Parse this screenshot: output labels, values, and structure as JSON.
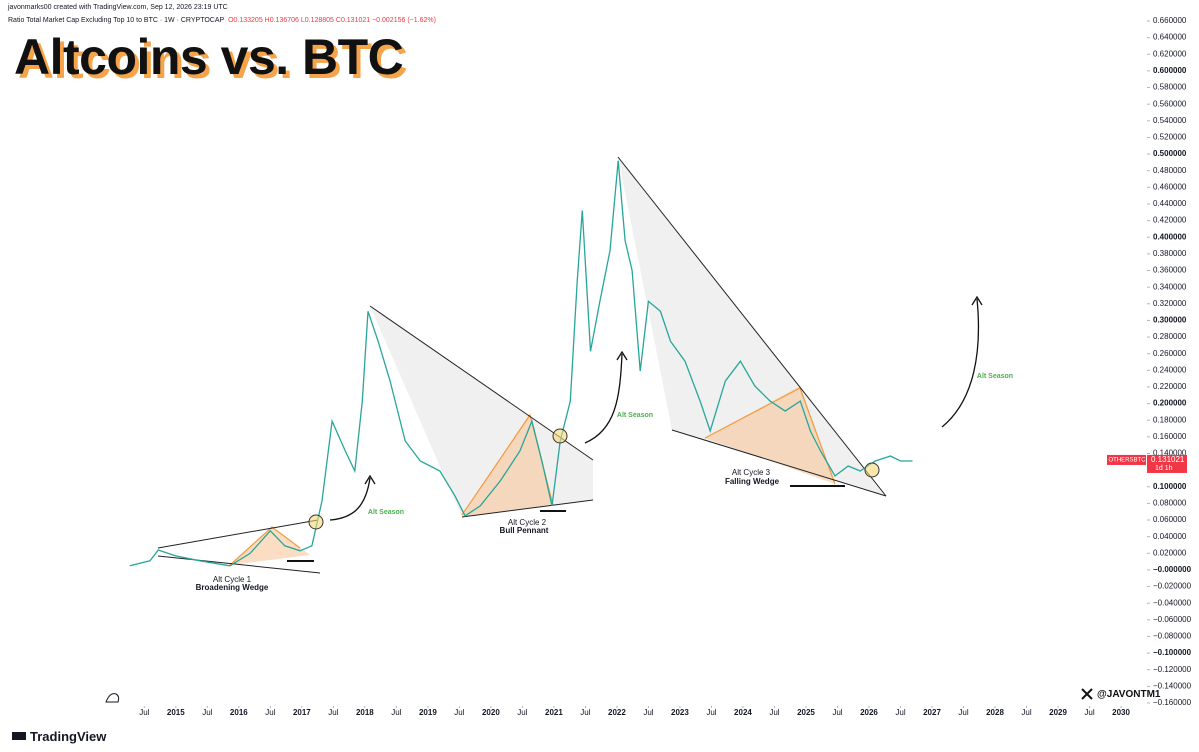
{
  "chart_data": {
    "type": "line",
    "title": "Altcoins vs. BTC",
    "attribution": "javonmarks00 created with TradingView.com, Sep 12, 2026 23:19 UTC",
    "symbol_text": "Ratio Total Market Cap Excluding Top 10 to BTC · 1W · CRYPTOCAP",
    "ohlc_text": "O0.133205  H0.136706  L0.128805  C0.131021  −0.002156 (−1.62%)",
    "brand": "TradingView",
    "handle": "@JAVONTM1",
    "last_price": 0.131021,
    "last_price_timer": "1d 1h",
    "x": [
      2014.27,
      2014.59,
      2014.72,
      2014.99,
      2015.38,
      2015.86,
      2016.18,
      2016.5,
      2016.73,
      2016.97,
      2017.16,
      2017.32,
      2017.48,
      2017.69,
      2017.84,
      2017.96,
      2018.05,
      2018.21,
      2018.4,
      2018.64,
      2018.88,
      2019.19,
      2019.43,
      2019.59,
      2019.83,
      2020.15,
      2020.46,
      2020.65,
      2020.81,
      2020.97,
      2021.1,
      2021.26,
      2021.37,
      2021.45,
      2021.58,
      2021.73,
      2021.89,
      2022.02,
      2022.13,
      2022.24,
      2022.37,
      2022.5,
      2022.69,
      2022.85,
      2023.08,
      2023.32,
      2023.48,
      2023.72,
      2023.96,
      2024.19,
      2024.43,
      2024.67,
      2024.91,
      2025.07,
      2025.23,
      2025.46,
      2025.67,
      2025.86,
      2026.1,
      2026.34,
      2026.5,
      2026.69
    ],
    "series": [
      {
        "name": "OTHERSBTC",
        "color": "#26a69a",
        "values": [
          0.005,
          0.011,
          0.024,
          0.017,
          0.011,
          0.005,
          0.02,
          0.047,
          0.029,
          0.023,
          0.029,
          0.083,
          0.179,
          0.143,
          0.119,
          0.203,
          0.311,
          0.275,
          0.227,
          0.155,
          0.131,
          0.119,
          0.089,
          0.065,
          0.077,
          0.107,
          0.143,
          0.179,
          0.131,
          0.077,
          0.155,
          0.203,
          0.347,
          0.432,
          0.263,
          0.323,
          0.384,
          0.492,
          0.396,
          0.36,
          0.239,
          0.323,
          0.311,
          0.275,
          0.251,
          0.203,
          0.167,
          0.227,
          0.251,
          0.221,
          0.203,
          0.191,
          0.203,
          0.167,
          0.143,
          0.113,
          0.125,
          0.119,
          0.131,
          0.137,
          0.131,
          0.131021
        ]
      }
    ],
    "price_label_color": "#f23645",
    "xlim": [
      2012.21,
      2030.38
    ],
    "ylim": [
      -0.16,
      0.66
    ],
    "xticks": [
      {
        "value": 2014.5,
        "label": "Jul"
      },
      2015,
      {
        "value": 2015.5,
        "label": "Jul"
      },
      2016,
      {
        "value": 2016.5,
        "label": "Jul"
      },
      2017,
      {
        "value": 2017.5,
        "label": "Jul"
      },
      2018,
      {
        "value": 2018.5,
        "label": "Jul"
      },
      2019,
      {
        "value": 2019.5,
        "label": "Jul"
      },
      2020,
      {
        "value": 2020.5,
        "label": "Jul"
      },
      2021,
      {
        "value": 2021.5,
        "label": "Jul"
      },
      2022,
      {
        "value": 2022.5,
        "label": "Jul"
      },
      2023,
      {
        "value": 2023.5,
        "label": "Jul"
      },
      2024,
      {
        "value": 2024.5,
        "label": "Jul"
      },
      2025,
      {
        "value": 2025.5,
        "label": "Jul"
      },
      2026,
      {
        "value": 2026.5,
        "label": "Jul"
      },
      2027,
      {
        "value": 2027.5,
        "label": "Jul"
      },
      2028,
      {
        "value": 2028.5,
        "label": "Jul"
      },
      2029,
      {
        "value": 2029.5,
        "label": "Jul"
      },
      2030
    ],
    "yticks": [
      {
        "value": 0.66,
        "label": "0.660000"
      },
      {
        "value": 0.64,
        "label": "0.640000"
      },
      {
        "value": 0.62,
        "label": "0.620000"
      },
      {
        "value": 0.6,
        "label": "0.600000"
      },
      {
        "value": 0.58,
        "label": "0.580000"
      },
      {
        "value": 0.56,
        "label": "0.560000"
      },
      {
        "value": 0.54,
        "label": "0.540000"
      },
      {
        "value": 0.52,
        "label": "0.520000"
      },
      {
        "value": 0.5,
        "label": "0.500000"
      },
      {
        "value": 0.48,
        "label": "0.480000"
      },
      {
        "value": 0.46,
        "label": "0.460000"
      },
      {
        "value": 0.44,
        "label": "0.440000"
      },
      {
        "value": 0.42,
        "label": "0.420000"
      },
      {
        "value": 0.4,
        "label": "0.400000"
      },
      {
        "value": 0.38,
        "label": "0.380000"
      },
      {
        "value": 0.36,
        "label": "0.360000"
      },
      {
        "value": 0.34,
        "label": "0.340000"
      },
      {
        "value": 0.32,
        "label": "0.320000"
      },
      {
        "value": 0.3,
        "label": "0.300000"
      },
      {
        "value": 0.28,
        "label": "0.280000"
      },
      {
        "value": 0.26,
        "label": "0.260000"
      },
      {
        "value": 0.24,
        "label": "0.240000"
      },
      {
        "value": 0.22,
        "label": "0.220000"
      },
      {
        "value": 0.2,
        "label": "0.200000"
      },
      {
        "value": 0.18,
        "label": "0.180000"
      },
      {
        "value": 0.16,
        "label": "0.160000"
      },
      {
        "value": 0.14,
        "label": "0.140000"
      },
      {
        "value": 0.1,
        "label": "0.100000"
      },
      {
        "value": 0.08,
        "label": "0.080000"
      },
      {
        "value": 0.06,
        "label": "0.060000"
      },
      {
        "value": 0.04,
        "label": "0.040000"
      },
      {
        "value": 0.02,
        "label": "0.020000"
      },
      {
        "value": 0,
        "label": "−0.000000"
      },
      {
        "value": -0.02,
        "label": "−0.020000"
      },
      {
        "value": -0.04,
        "label": "−0.040000"
      },
      {
        "value": -0.06,
        "label": "−0.060000"
      },
      {
        "value": -0.08,
        "label": "−0.080000"
      },
      {
        "value": -0.1,
        "label": "−0.100000"
      },
      {
        "value": -0.12,
        "label": "−0.120000"
      },
      {
        "value": -0.14,
        "label": "−0.140000"
      },
      {
        "value": -0.16,
        "label": "−0.160000"
      }
    ],
    "grid": false,
    "annotations": [
      "Alt Cycle 1",
      "Broadening Wedge",
      "Alt Season",
      "Alt Cycle 2",
      "Bull Pennant",
      "Alt Season",
      "Alt Cycle 3",
      "Falling Wedge",
      "Alt Season"
    ]
  }
}
